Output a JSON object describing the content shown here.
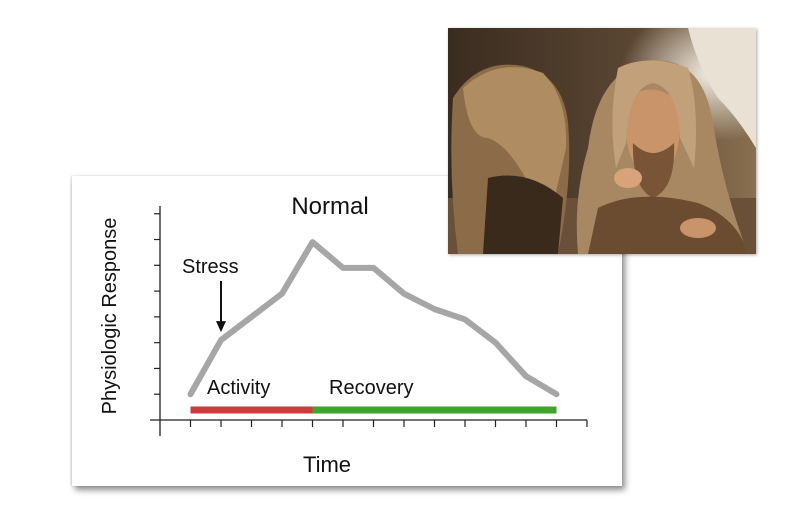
{
  "chart_data": {
    "type": "line",
    "title": "Normal",
    "xlabel": "Time",
    "ylabel": "Physiologic Response",
    "x": [
      0,
      1,
      3,
      4,
      5,
      6,
      7,
      8,
      9,
      10,
      11,
      12
    ],
    "values": [
      1,
      3.1,
      4.9,
      6.9,
      5.9,
      5.9,
      4.9,
      4.3,
      3.9,
      3.0,
      1.7,
      1.0
    ],
    "xlim": [
      -1,
      13
    ],
    "ylim": [
      0,
      8.3
    ],
    "grid": false,
    "line_color": "#a6a6a6",
    "annotations": [
      {
        "label": "Stress",
        "arrow_to": {
          "x": 1,
          "y": 3.1
        }
      },
      {
        "label": "Activity",
        "x_range": [
          0,
          4
        ],
        "color": "#cc3c3c"
      },
      {
        "label": "Recovery",
        "x_range": [
          4,
          12
        ],
        "color": "#3ca52a"
      }
    ]
  },
  "photo": {
    "subject": "two cavemen seated by a cave",
    "colors": {
      "background": "#4a3a2a",
      "hair": "#b89a74",
      "fur": "#7a5a3a",
      "skin": "#d8a27a"
    }
  }
}
